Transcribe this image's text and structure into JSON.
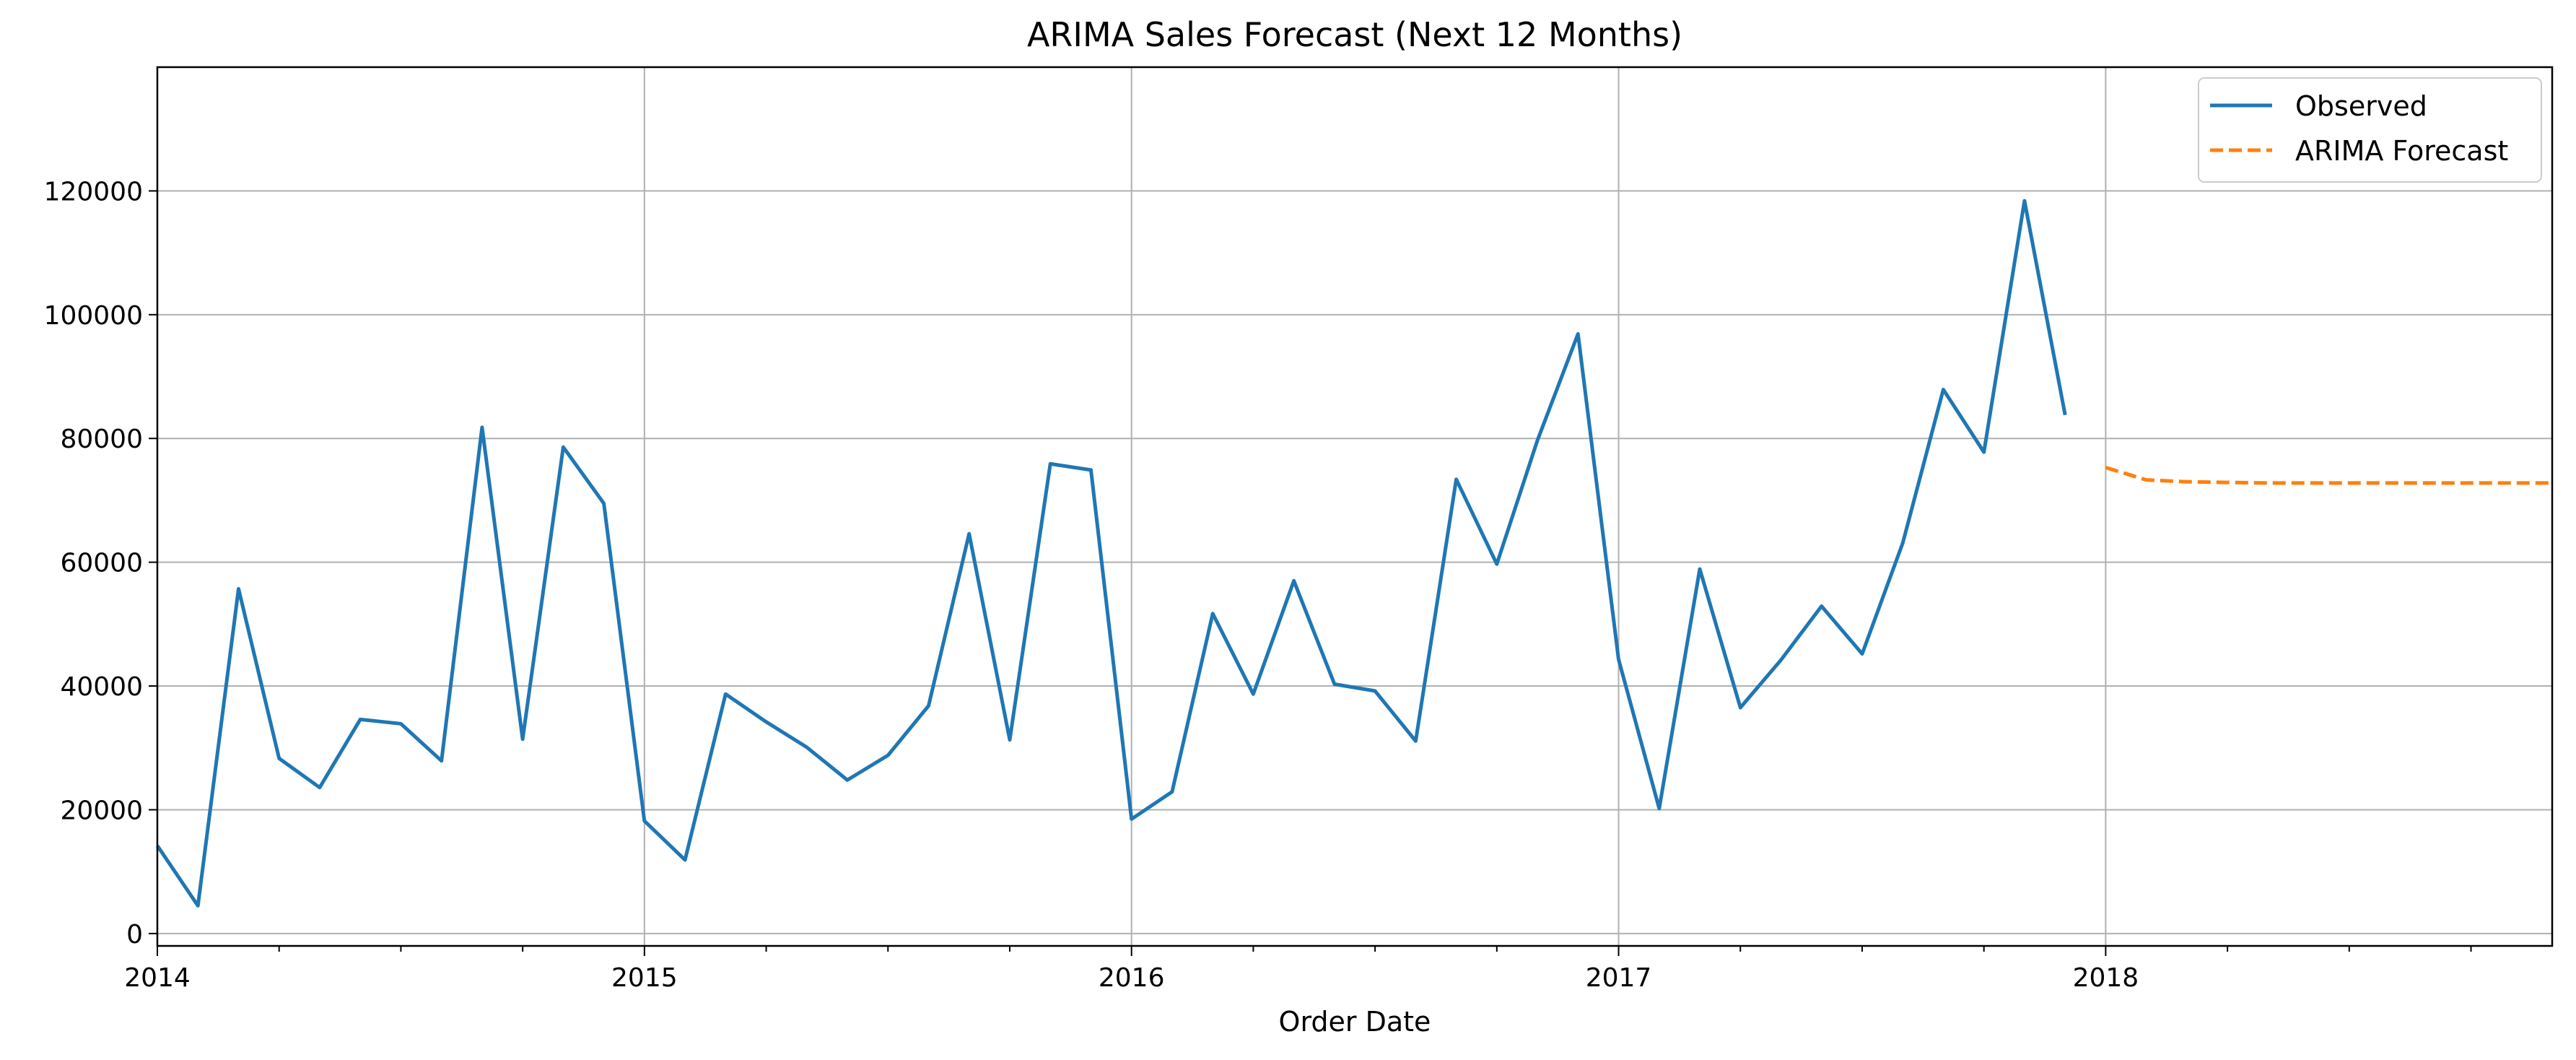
{
  "chart_data": {
    "type": "line",
    "title": "ARIMA Sales Forecast (Next 12 Months)",
    "xlabel": "Order Date",
    "ylabel": "",
    "x_axis": {
      "type": "date",
      "range": [
        "2014-01",
        "2018-12"
      ],
      "major_tick_labels": [
        "2014",
        "2015",
        "2016",
        "2017",
        "2018"
      ]
    },
    "y_axis": {
      "range": [
        -2000,
        140000
      ],
      "tick_labels": [
        "0",
        "20000",
        "40000",
        "60000",
        "80000",
        "100000",
        "120000"
      ]
    },
    "grid": true,
    "legend": {
      "placement": "top-right"
    },
    "series": [
      {
        "name": "Observed",
        "color": "#1f77b4",
        "style": "solid",
        "x": [
          "2014-01",
          "2014-02",
          "2014-03",
          "2014-04",
          "2014-05",
          "2014-06",
          "2014-07",
          "2014-08",
          "2014-09",
          "2014-10",
          "2014-11",
          "2014-12",
          "2015-01",
          "2015-02",
          "2015-03",
          "2015-04",
          "2015-05",
          "2015-06",
          "2015-07",
          "2015-08",
          "2015-09",
          "2015-10",
          "2015-11",
          "2015-12",
          "2016-01",
          "2016-02",
          "2016-03",
          "2016-04",
          "2016-05",
          "2016-06",
          "2016-07",
          "2016-08",
          "2016-09",
          "2016-10",
          "2016-11",
          "2016-12",
          "2017-01",
          "2017-02",
          "2017-03",
          "2017-04",
          "2017-05",
          "2017-06",
          "2017-07",
          "2017-08",
          "2017-09",
          "2017-10",
          "2017-11",
          "2017-12"
        ],
        "values": [
          14200,
          4500,
          55700,
          28300,
          23600,
          34600,
          33900,
          27900,
          81800,
          31400,
          78600,
          69500,
          18200,
          11900,
          38700,
          34200,
          30100,
          24800,
          28800,
          36800,
          64600,
          31300,
          75900,
          74900,
          18500,
          22900,
          51700,
          38700,
          57000,
          40300,
          39200,
          31100,
          73400,
          59700,
          79700,
          96900,
          44300,
          20200,
          58900,
          36500,
          44200,
          52900,
          45200,
          63100,
          87900,
          77800,
          118400,
          83800
        ]
      },
      {
        "name": "ARIMA Forecast",
        "color": "#ff7f0e",
        "style": "dashed",
        "x": [
          "2018-01",
          "2018-02",
          "2018-03",
          "2018-04",
          "2018-05",
          "2018-06",
          "2018-07",
          "2018-08",
          "2018-09",
          "2018-10",
          "2018-11",
          "2018-12"
        ],
        "values": [
          75300,
          73300,
          73000,
          72900,
          72800,
          72800,
          72800,
          72800,
          72800,
          72800,
          72800,
          72800
        ]
      }
    ]
  }
}
